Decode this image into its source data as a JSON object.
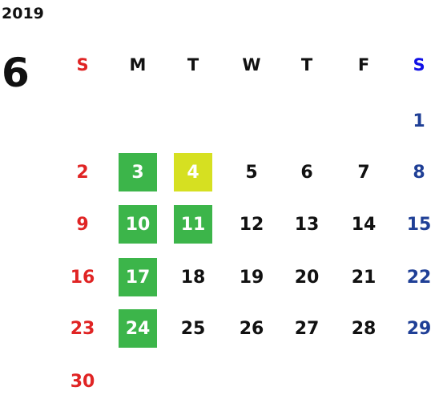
{
  "year": "2019",
  "month": "6",
  "weekdays": [
    "S",
    "M",
    "T",
    "W",
    "T",
    "F",
    "S"
  ],
  "weeks": [
    [
      null,
      null,
      null,
      null,
      null,
      null,
      "1"
    ],
    [
      "2",
      {
        "label": "3",
        "color": "#3cb54a"
      },
      {
        "label": "4",
        "color": "#d6e021"
      },
      "5",
      "6",
      "7",
      "8"
    ],
    [
      "9",
      {
        "label": "10",
        "color": "#3cb54a"
      },
      {
        "label": "11",
        "color": "#3cb54a"
      },
      "12",
      "13",
      "14",
      "15"
    ],
    [
      "16",
      {
        "label": "17",
        "color": "#3cb54a"
      },
      "18",
      "19",
      "20",
      "21",
      "22"
    ],
    [
      "23",
      {
        "label": "24",
        "color": "#3cb54a"
      },
      "25",
      "26",
      "27",
      "28",
      "29"
    ],
    [
      "30"
    ]
  ]
}
